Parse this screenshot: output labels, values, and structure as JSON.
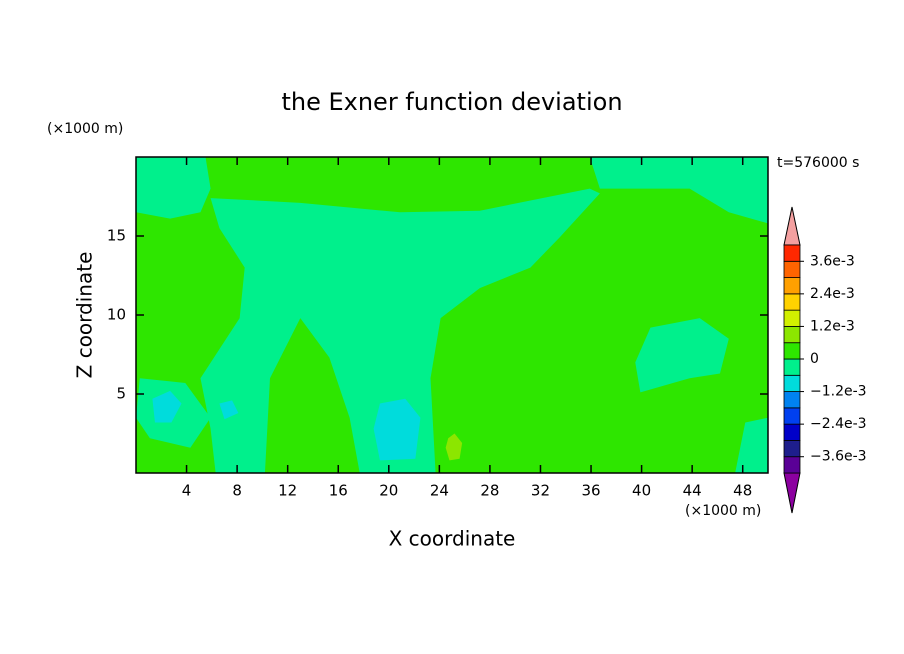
{
  "chart_data": {
    "type": "contour",
    "title": "the Exner function deviation",
    "x_label": "X coordinate",
    "y_label": "Z coordinate",
    "x_unit": "(×1000 m)",
    "y_unit": "(×1000 m)",
    "time_label": "t=576000 s",
    "xlim": [
      0,
      50
    ],
    "ylim": [
      0,
      20
    ],
    "xticks": [
      4,
      8,
      12,
      16,
      20,
      24,
      28,
      32,
      36,
      40,
      44,
      48
    ],
    "yticks": [
      5,
      10,
      15
    ],
    "colorbar": {
      "levels": [
        -0.0042,
        -0.0036,
        -0.003,
        -0.0024,
        -0.0018,
        -0.0012,
        -0.0006,
        0,
        0.0006,
        0.0012,
        0.0018,
        0.0024,
        0.003,
        0.0036,
        0.0042
      ],
      "colors": [
        "#5a0096",
        "#1e1e8c",
        "#0000c8",
        "#0040f0",
        "#0082f0",
        "#00dcdc",
        "#00f08c",
        "#2ee600",
        "#8ce600",
        "#d2f000",
        "#ffd200",
        "#ffa000",
        "#ff6400",
        "#ff2800"
      ],
      "extend_low_color": "#8c00a0",
      "extend_high_color": "#f4a0a0",
      "ticks": [
        {
          "value": 0.0036,
          "label": "3.6e-3"
        },
        {
          "value": 0.0024,
          "label": "2.4e-3"
        },
        {
          "value": 0.0012,
          "label": "1.2e-3"
        },
        0,
        {
          "value": -0.0012,
          "label": "−1.2e-3"
        },
        {
          "value": -0.0024,
          "label": "−2.4e-3"
        },
        {
          "value": -0.0036,
          "label": "−3.6e-3"
        }
      ]
    },
    "regions": [
      {
        "value": 0.0003,
        "x": [
          0,
          50,
          50,
          0
        ],
        "z": [
          0,
          0,
          20,
          20
        ]
      },
      {
        "value": -0.0003,
        "x": [
          0,
          5.5,
          5.9,
          5.1,
          2.7,
          0
        ],
        "z": [
          20,
          20,
          18.0,
          16.5,
          16.1,
          16.5
        ]
      },
      {
        "value": -0.0003,
        "x": [
          5.9,
          13.0,
          20.9,
          27.2,
          35.9,
          36.7,
          33.5,
          31.2,
          27.2,
          24.1,
          23.3,
          23.7,
          17.7,
          16.9,
          15.3,
          13.0,
          10.6,
          10.2,
          6.3,
          5.9,
          5.1,
          8.2,
          8.6,
          6.6
        ],
        "z": [
          17.4,
          17.1,
          16.5,
          16.6,
          18.0,
          17.7,
          14.9,
          13.0,
          11.7,
          9.8,
          6.0,
          0,
          0,
          3.5,
          7.3,
          9.8,
          6.0,
          0,
          0,
          2.8,
          6.0,
          9.8,
          13.0,
          15.5
        ]
      },
      {
        "value": -0.0003,
        "x": [
          0.3,
          3.9,
          5.9,
          4.3,
          1.1,
          0
        ],
        "z": [
          6.0,
          5.7,
          3.5,
          1.6,
          2.2,
          3.5
        ]
      },
      {
        "value": -0.0003,
        "x": [
          35.9,
          50,
          50,
          46.9,
          43.8,
          36.7
        ],
        "z": [
          20,
          20,
          15.8,
          16.5,
          18.0,
          18.0
        ]
      },
      {
        "value": -0.0003,
        "x": [
          40.7,
          44.6,
          46.9,
          46.2,
          43.8,
          39.9,
          39.5
        ],
        "z": [
          9.2,
          9.8,
          8.5,
          6.3,
          6.0,
          5.1,
          7.0
        ]
      },
      {
        "value": -0.0003,
        "x": [
          48.2,
          50,
          50,
          47.4
        ],
        "z": [
          3.2,
          3.5,
          0,
          0
        ]
      },
      {
        "value": -0.0009,
        "x": [
          19.3,
          21.3,
          22.5,
          22.1,
          19.3,
          18.8
        ],
        "z": [
          4.4,
          4.7,
          3.5,
          0.9,
          0.8,
          2.8
        ]
      },
      {
        "value": -0.0009,
        "x": [
          1.3,
          2.7,
          3.6,
          2.8,
          1.5
        ],
        "z": [
          4.7,
          5.2,
          4.4,
          3.2,
          3.2
        ]
      },
      {
        "value": -0.0009,
        "x": [
          6.6,
          7.6,
          8.1,
          7.0
        ],
        "z": [
          4.4,
          4.6,
          3.8,
          3.4
        ]
      },
      {
        "value": 0.0009,
        "x": [
          24.7,
          25.2,
          25.8,
          25.6,
          24.8,
          24.5
        ],
        "z": [
          2.2,
          2.5,
          1.9,
          0.9,
          0.8,
          1.6
        ]
      }
    ]
  }
}
